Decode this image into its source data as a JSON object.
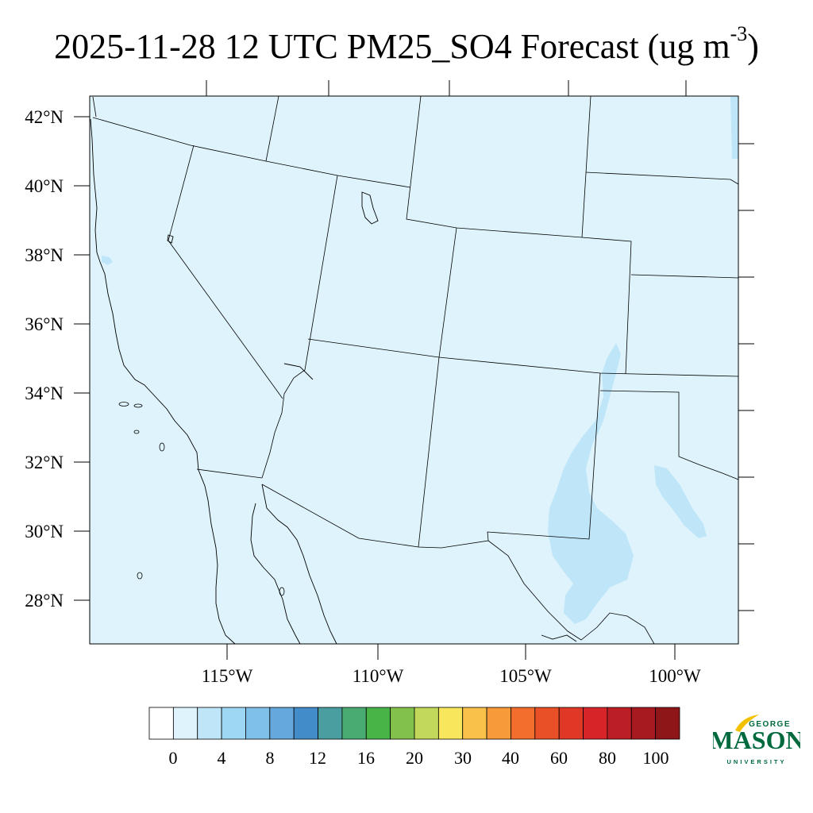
{
  "title": {
    "main": "2025-11-28 12 UTC PM25_SO4 Forecast (ug m",
    "exponent": "-3",
    "close": ")"
  },
  "map": {
    "lat_labels": [
      "42°N",
      "40°N",
      "38°N",
      "36°N",
      "34°N",
      "32°N",
      "30°N",
      "28°N"
    ],
    "lon_labels": [
      "115°W",
      "110°W",
      "105°W",
      "100°W"
    ],
    "colors": {
      "background_fill": "#dff3fc",
      "light_blue_fill": "#bfe6f8",
      "outline": "#000000"
    }
  },
  "colorbar": {
    "colors": [
      "#ffffff",
      "#dff3fc",
      "#bfe6f8",
      "#9cd8f4",
      "#7fc0e9",
      "#64a8dd",
      "#428cc9",
      "#4a9ea0",
      "#4aab72",
      "#48b448",
      "#82c24c",
      "#c1d85a",
      "#f8e75c",
      "#f9c04a",
      "#f79a3a",
      "#f36e2c",
      "#ea5028",
      "#e03826",
      "#d62428",
      "#bb1e24",
      "#a71a1f",
      "#8e1518"
    ],
    "labels": [
      "0",
      "4",
      "8",
      "12",
      "16",
      "20",
      "30",
      "40",
      "60",
      "80",
      "100"
    ]
  },
  "logo": {
    "top": "GEORGE",
    "main": "MASON",
    "bottom": "UNIVERSITY",
    "color": "#00693e",
    "accent": "#f2c200"
  }
}
